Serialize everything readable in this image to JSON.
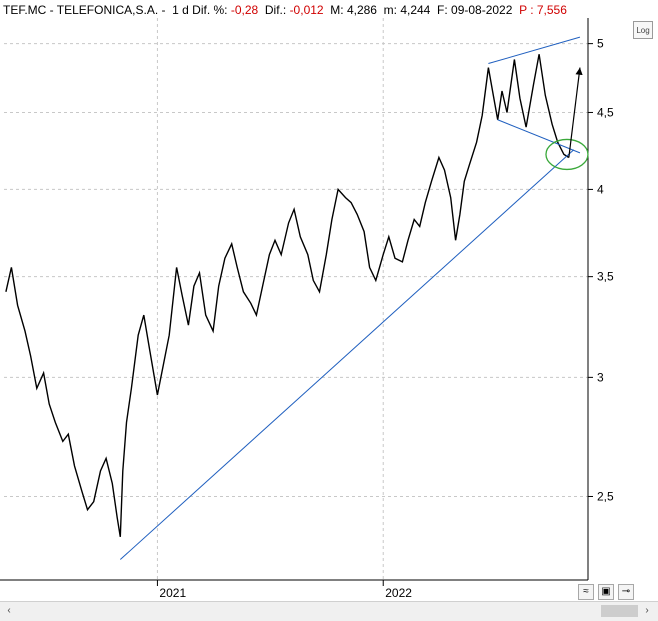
{
  "header": {
    "symbol": "TEF.MC",
    "sep1": " - ",
    "name": "TELEFONICA,S.A.",
    "sep2": " -  ",
    "period": "1 d",
    "dif_pct_label": " Dif. %: ",
    "dif_pct_value": "-0,28",
    "dif_label": "  Dif.: ",
    "dif_value": "-0,012",
    "max_label": "  M: ",
    "max_value": "4,286",
    "min_label": "  m: ",
    "min_value": "4,244",
    "date_label": "  F: ",
    "date_value": "09-08-2022",
    "per_label": "  P : ",
    "per_value": "7,556"
  },
  "toolbar": {
    "log_label": "Log",
    "wave_icon": "wave-icon",
    "save_icon": "floppy-save-icon",
    "pin_icon": "pin-icon",
    "scroll_left_icon": "‹",
    "scroll_right_icon": "›"
  },
  "chart_data": {
    "type": "line",
    "title": "",
    "xlabel": "",
    "ylabel": "",
    "y_scale": "log",
    "ylim": [
      2.2,
      5.2
    ],
    "y_ticks": [
      5,
      4.5,
      4,
      3.5,
      3,
      2.5
    ],
    "y_tick_labels": [
      "5",
      "4,5",
      "4",
      "3,5",
      "3",
      "2,5"
    ],
    "x_tick_labels": [
      "2021",
      "2022"
    ],
    "x_tick_dates": [
      "2021-01-01",
      "2022-01-01"
    ],
    "grid": true,
    "colors": {
      "price": "#000000",
      "trendline": "#1f5fbf",
      "ellipse": "#3aa83a",
      "arrow": "#000000",
      "grid": "#c8c8c8"
    },
    "series": [
      {
        "values": [
          [
            "2020-05-01",
            3.42
          ],
          [
            "2020-05-10",
            3.55
          ],
          [
            "2020-05-20",
            3.35
          ],
          [
            "2020-06-01",
            3.22
          ],
          [
            "2020-06-10",
            3.1
          ],
          [
            "2020-06-20",
            2.95
          ],
          [
            "2020-07-01",
            3.02
          ],
          [
            "2020-07-10",
            2.88
          ],
          [
            "2020-07-20",
            2.8
          ],
          [
            "2020-08-01",
            2.72
          ],
          [
            "2020-08-10",
            2.75
          ],
          [
            "2020-08-20",
            2.62
          ],
          [
            "2020-09-01",
            2.52
          ],
          [
            "2020-09-10",
            2.45
          ],
          [
            "2020-09-20",
            2.48
          ],
          [
            "2020-10-01",
            2.6
          ],
          [
            "2020-10-10",
            2.65
          ],
          [
            "2020-10-20",
            2.55
          ],
          [
            "2020-10-28",
            2.42
          ],
          [
            "2020-11-02",
            2.35
          ],
          [
            "2020-11-06",
            2.6
          ],
          [
            "2020-11-12",
            2.8
          ],
          [
            "2020-11-20",
            2.95
          ],
          [
            "2020-12-01",
            3.2
          ],
          [
            "2020-12-10",
            3.3
          ],
          [
            "2020-12-20",
            3.12
          ],
          [
            "2021-01-01",
            2.92
          ],
          [
            "2021-01-10",
            3.05
          ],
          [
            "2021-01-20",
            3.2
          ],
          [
            "2021-02-01",
            3.55
          ],
          [
            "2021-02-10",
            3.4
          ],
          [
            "2021-02-20",
            3.25
          ],
          [
            "2021-03-01",
            3.45
          ],
          [
            "2021-03-10",
            3.52
          ],
          [
            "2021-03-20",
            3.3
          ],
          [
            "2021-04-01",
            3.22
          ],
          [
            "2021-04-10",
            3.45
          ],
          [
            "2021-04-20",
            3.6
          ],
          [
            "2021-05-01",
            3.68
          ],
          [
            "2021-05-10",
            3.55
          ],
          [
            "2021-05-20",
            3.42
          ],
          [
            "2021-06-01",
            3.36
          ],
          [
            "2021-06-10",
            3.3
          ],
          [
            "2021-06-20",
            3.45
          ],
          [
            "2021-07-01",
            3.62
          ],
          [
            "2021-07-10",
            3.7
          ],
          [
            "2021-07-20",
            3.62
          ],
          [
            "2021-08-01",
            3.8
          ],
          [
            "2021-08-10",
            3.88
          ],
          [
            "2021-08-20",
            3.72
          ],
          [
            "2021-09-01",
            3.62
          ],
          [
            "2021-09-10",
            3.48
          ],
          [
            "2021-09-20",
            3.42
          ],
          [
            "2021-10-01",
            3.62
          ],
          [
            "2021-10-10",
            3.82
          ],
          [
            "2021-10-20",
            4.0
          ],
          [
            "2021-11-01",
            3.95
          ],
          [
            "2021-11-10",
            3.92
          ],
          [
            "2021-11-20",
            3.85
          ],
          [
            "2021-12-01",
            3.75
          ],
          [
            "2021-12-10",
            3.55
          ],
          [
            "2021-12-20",
            3.48
          ],
          [
            "2022-01-01",
            3.62
          ],
          [
            "2022-01-10",
            3.72
          ],
          [
            "2022-01-20",
            3.6
          ],
          [
            "2022-02-01",
            3.58
          ],
          [
            "2022-02-10",
            3.7
          ],
          [
            "2022-02-20",
            3.82
          ],
          [
            "2022-03-01",
            3.78
          ],
          [
            "2022-03-10",
            3.92
          ],
          [
            "2022-03-20",
            4.05
          ],
          [
            "2022-04-01",
            4.2
          ],
          [
            "2022-04-10",
            4.12
          ],
          [
            "2022-04-20",
            3.95
          ],
          [
            "2022-04-28",
            3.7
          ],
          [
            "2022-05-05",
            3.85
          ],
          [
            "2022-05-12",
            4.05
          ],
          [
            "2022-05-20",
            4.15
          ],
          [
            "2022-06-01",
            4.3
          ],
          [
            "2022-06-10",
            4.48
          ],
          [
            "2022-06-20",
            4.82
          ],
          [
            "2022-06-28",
            4.62
          ],
          [
            "2022-07-05",
            4.45
          ],
          [
            "2022-07-12",
            4.65
          ],
          [
            "2022-07-20",
            4.5
          ],
          [
            "2022-08-01",
            4.88
          ],
          [
            "2022-08-10",
            4.6
          ],
          [
            "2022-08-20",
            4.4
          ],
          [
            "2022-09-01",
            4.7
          ],
          [
            "2022-09-10",
            4.92
          ],
          [
            "2022-09-20",
            4.62
          ],
          [
            "2022-10-01",
            4.42
          ],
          [
            "2022-10-10",
            4.3
          ],
          [
            "2022-10-20",
            4.22
          ],
          [
            "2022-10-28",
            4.2
          ]
        ]
      }
    ],
    "annotations": [
      {
        "type": "trendline",
        "from": [
          "2020-11-02",
          2.27
        ],
        "to": [
          "2022-11-05",
          4.25
        ]
      },
      {
        "type": "trendline",
        "from": [
          "2022-06-20",
          4.85
        ],
        "to": [
          "2022-11-15",
          5.05
        ]
      },
      {
        "type": "trendline",
        "from": [
          "2022-07-05",
          4.45
        ],
        "to": [
          "2022-11-15",
          4.23
        ]
      },
      {
        "type": "ellipse",
        "center": [
          "2022-10-25",
          4.22
        ]
      },
      {
        "type": "arrow",
        "from": [
          "2022-10-28",
          4.2
        ],
        "to": [
          "2022-11-15",
          4.82
        ]
      }
    ]
  }
}
